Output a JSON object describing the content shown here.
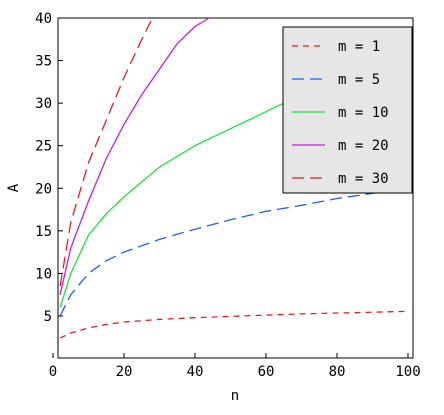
{
  "chart_data": {
    "type": "line",
    "title": "",
    "xlabel": "n",
    "ylabel": "A",
    "xlim": [
      0,
      100
    ],
    "ylim": [
      0,
      40
    ],
    "x_ticks": [
      0,
      20,
      40,
      60,
      80,
      100
    ],
    "y_ticks": [
      5,
      10,
      15,
      20,
      25,
      30,
      35,
      40
    ],
    "grid": false,
    "legend_position": "top-right",
    "series": [
      {
        "name": "m = 1",
        "color": "#e02020",
        "dash": "dashed",
        "x": [
          2,
          5,
          10,
          15,
          20,
          30,
          40,
          50,
          60,
          70,
          80,
          90,
          100
        ],
        "y": [
          2.4,
          3.0,
          3.6,
          4.0,
          4.3,
          4.6,
          4.8,
          4.95,
          5.1,
          5.25,
          5.35,
          5.45,
          5.55
        ]
      },
      {
        "name": "m = 5",
        "color": "#2060e0",
        "dash": "longdash",
        "x": [
          2,
          5,
          10,
          15,
          20,
          30,
          40,
          50,
          60,
          70,
          80,
          90,
          100
        ],
        "y": [
          5.0,
          7.5,
          10.0,
          11.5,
          12.5,
          14.0,
          15.2,
          16.3,
          17.3,
          18.0,
          18.8,
          19.4,
          20.0
        ]
      },
      {
        "name": "m = 10",
        "color": "#20e040",
        "dash": "solid",
        "x": [
          2,
          5,
          10,
          15,
          20,
          30,
          40,
          50,
          60,
          65
        ],
        "y": [
          6.0,
          10.0,
          14.5,
          17.0,
          19.0,
          22.5,
          25.0,
          27.0,
          29.0,
          30.0
        ]
      },
      {
        "name": "m = 20",
        "color": "#c020e0",
        "dash": "solid",
        "x": [
          2,
          5,
          10,
          15,
          20,
          25,
          30,
          35,
          40,
          44
        ],
        "y": [
          7.5,
          13.0,
          18.5,
          23.5,
          27.5,
          31.0,
          34.0,
          37.0,
          39.0,
          40.0
        ]
      },
      {
        "name": "m = 30",
        "color": "#e02020",
        "dash": "longdash",
        "x": [
          2,
          5,
          10,
          15,
          20,
          25,
          28
        ],
        "y": [
          8.5,
          16.0,
          23.0,
          28.0,
          33.0,
          37.5,
          40.0
        ]
      }
    ]
  }
}
